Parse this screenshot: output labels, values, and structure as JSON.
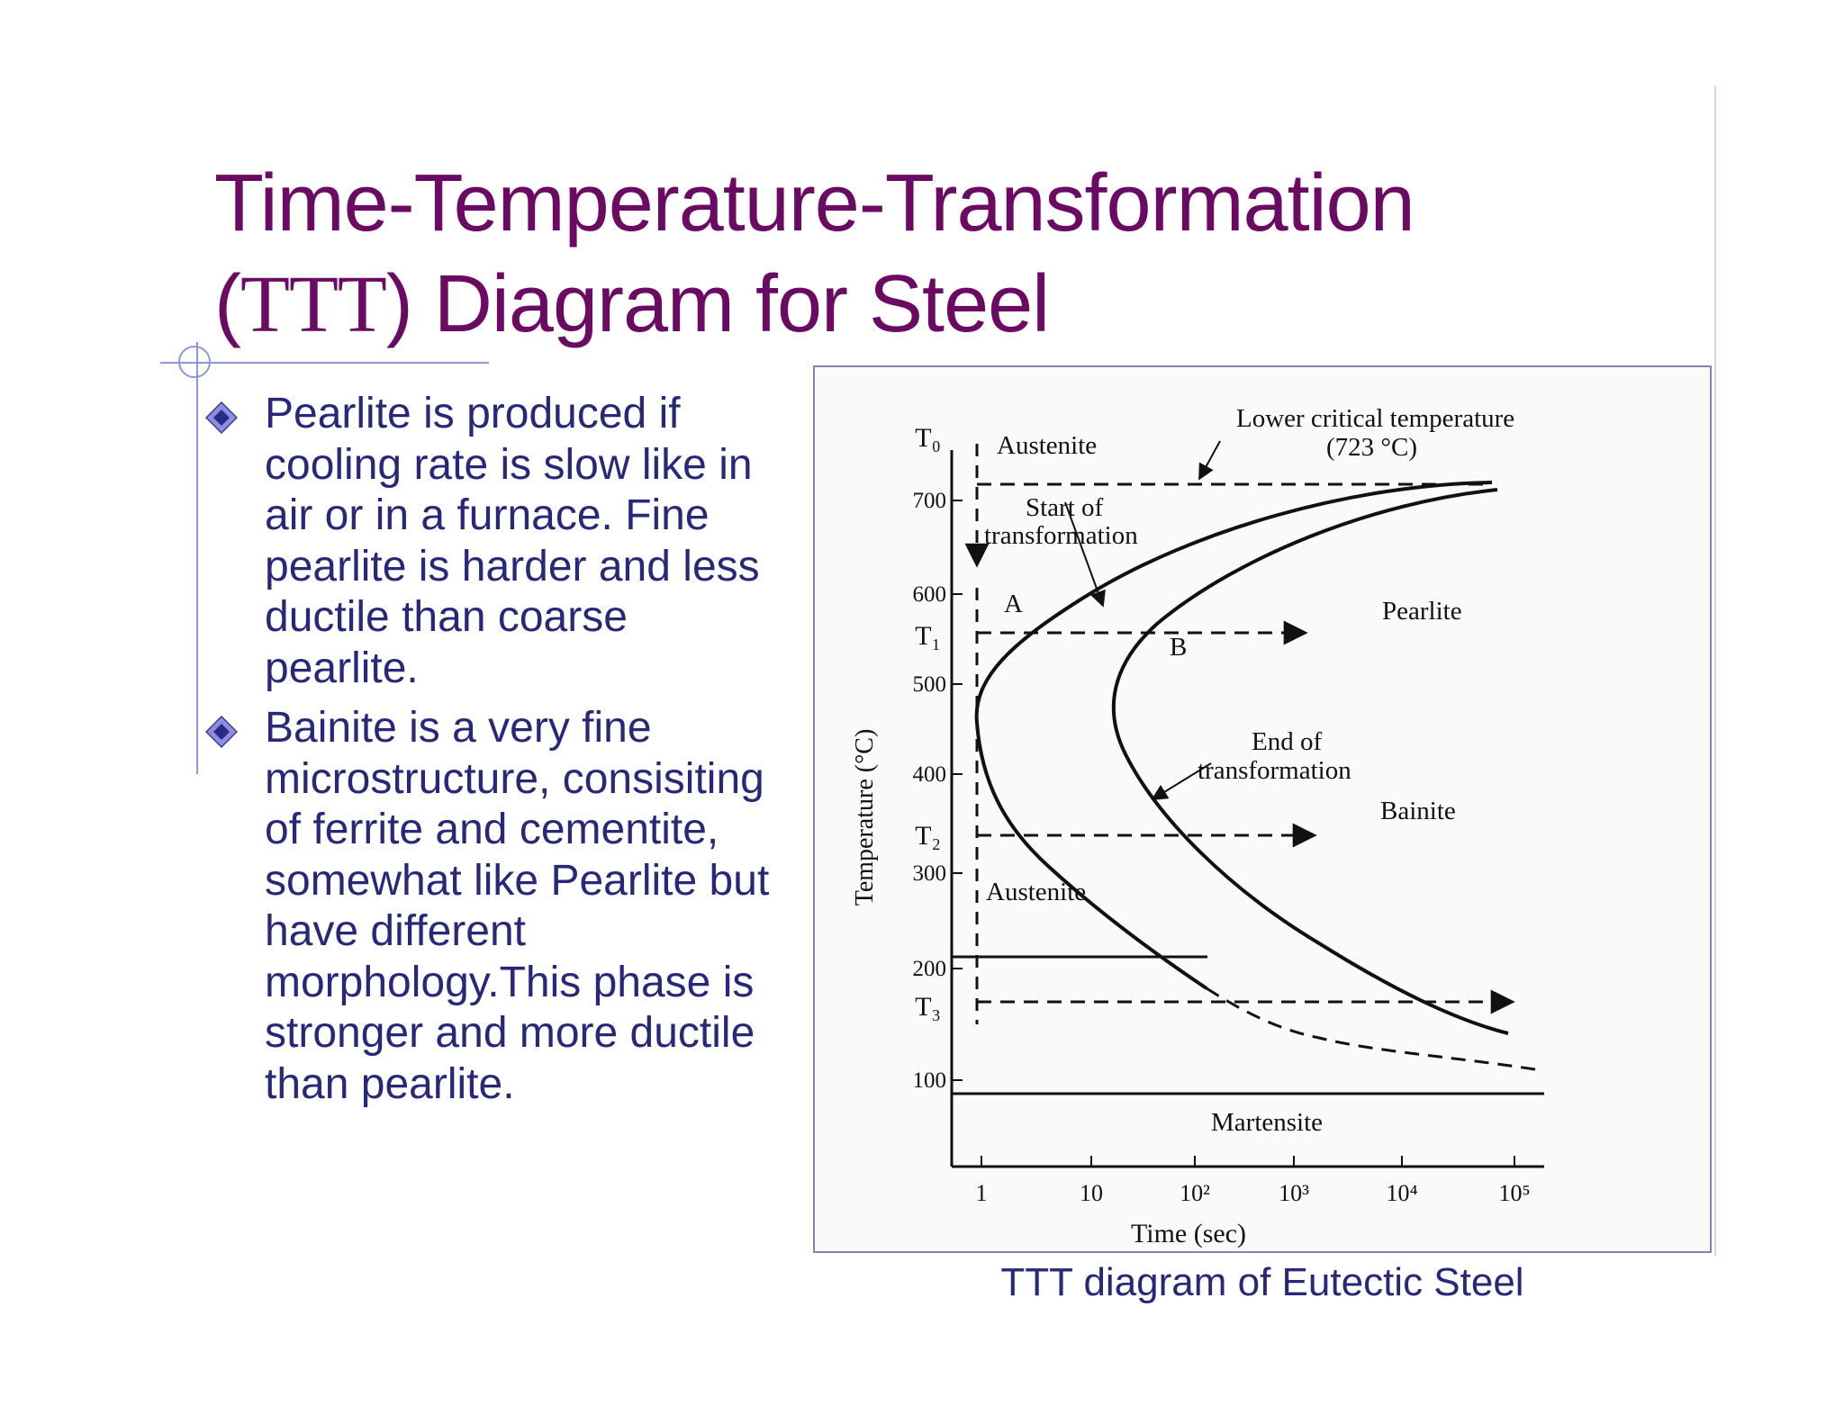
{
  "slide": {
    "title_part1": "Time-Temperature-Transformation",
    "title_open": "(",
    "title_abbr": "TTT",
    "title_rest": ") Diagram for Steel",
    "bullets": [
      {
        "icon": "diamond-bullet-icon",
        "text": "Pearlite is produced if cooling rate is slow like in air or in a furnace. Fine pearlite is harder and less ductile than coarse pearlite."
      },
      {
        "icon": "diamond-bullet-icon",
        "text": "Bainite is a very fine microstructure, consisiting of ferrite and cementite, somewhat like Pearlite but have different morphology.This phase is stronger and more ductile than pearlite."
      }
    ],
    "caption": "TTT diagram of Eutectic Steel"
  },
  "colors": {
    "title": "#6b0a62",
    "body_text": "#28287a",
    "accent_lines": "#8e98d8",
    "diagram_border": "#7c84b8"
  },
  "diagram": {
    "ylabel": "Temperature (°C)",
    "xlabel": "Time (sec)",
    "y_ticks": [
      "700",
      "600",
      "500",
      "400",
      "300",
      "200",
      "100"
    ],
    "x_ticks": [
      "1",
      "10",
      "10²",
      "10³",
      "10⁴",
      "10⁵"
    ],
    "temperature_marks": {
      "T0": "T₀",
      "T1": "T₁",
      "T2": "T₂",
      "T3": "T₃"
    },
    "labels": {
      "austenite_top": "Austenite",
      "start_of": "Start of",
      "transformation": "transformation",
      "lower_critical_line1": "Lower critical temperature",
      "lower_critical_line2": "(723 °C)",
      "point_a": "A",
      "point_b": "B",
      "pearlite": "Pearlite",
      "end_of": "End of",
      "end_transformation": "transformation",
      "bainite": "Bainite",
      "austenite_low": "Austenite",
      "martensite": "Martensite"
    }
  }
}
